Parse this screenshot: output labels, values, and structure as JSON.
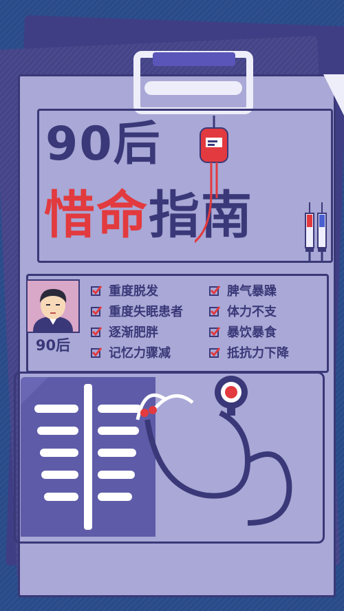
{
  "title": {
    "line1": "90后",
    "line2_red": "惜命",
    "line2_dark": "指南"
  },
  "profile": {
    "label": "90后"
  },
  "symptoms": {
    "left": [
      "重度脱发",
      "重度失眠患者",
      "逐渐肥胖",
      "记忆力骤减"
    ],
    "right": [
      "脾气暴躁",
      "体力不支",
      "暴饮暴食",
      "抵抗力下降"
    ]
  },
  "colors": {
    "background": "#2c4d8a",
    "board": "#a9a8d6",
    "ink": "#3a3878",
    "accent_red": "#e23a3e",
    "clip": "#5a55b8"
  },
  "icons": [
    "clipboard-clip-icon",
    "blood-bag-icon",
    "syringe-icon",
    "person-avatar-icon",
    "checkbox-icon",
    "xray-ribcage-icon",
    "stethoscope-icon"
  ]
}
